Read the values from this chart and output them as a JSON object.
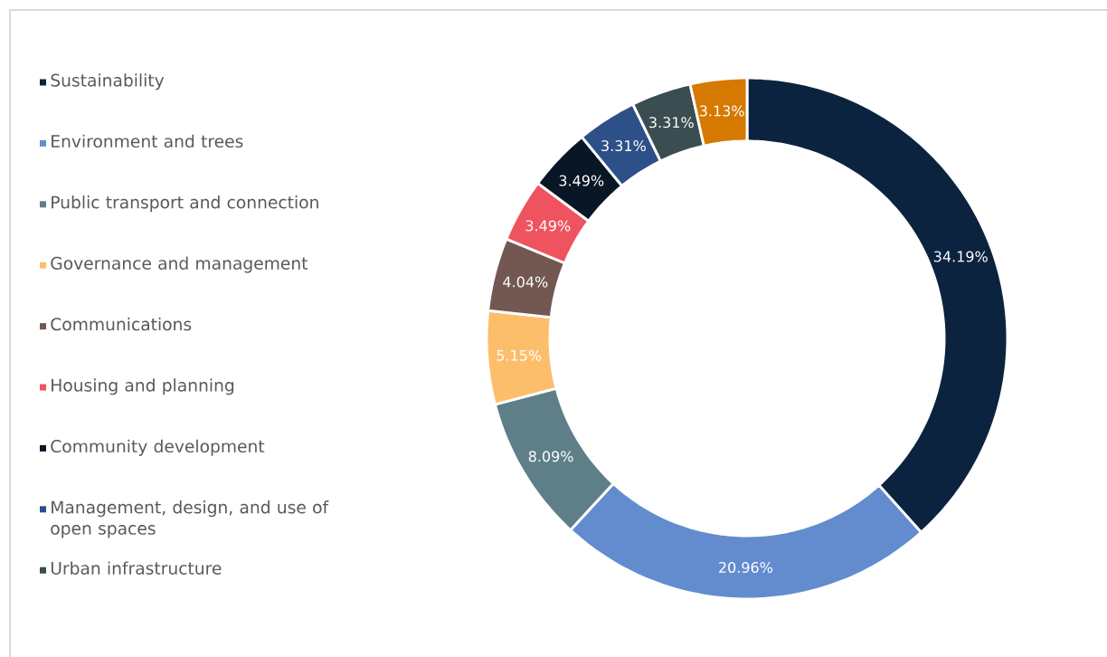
{
  "chart_data": {
    "type": "donut",
    "categories": [
      "Sustainability",
      "Environment and trees",
      "Public transport and connection",
      "Governance and management",
      "Communications",
      "Housing and planning",
      "Community development",
      "Management, design, and use of open spaces",
      "Urban infrastructure",
      null
    ],
    "values": [
      34.19,
      20.96,
      8.09,
      5.15,
      4.04,
      3.49,
      3.49,
      3.31,
      3.31,
      3.13
    ],
    "value_labels": [
      "34.19%",
      "20.96%",
      "8.09%",
      "5.15%",
      "4.04%",
      "3.49%",
      "3.49%",
      "3.31%",
      "3.31%",
      "3.13%"
    ],
    "colors": [
      "#0c2340",
      "#638ccf",
      "#5e7f87",
      "#fdbe6c",
      "#735852",
      "#ef5360",
      "#081625",
      "#2d5088",
      "#3a4e52",
      "#d67900"
    ],
    "legend": "left"
  }
}
